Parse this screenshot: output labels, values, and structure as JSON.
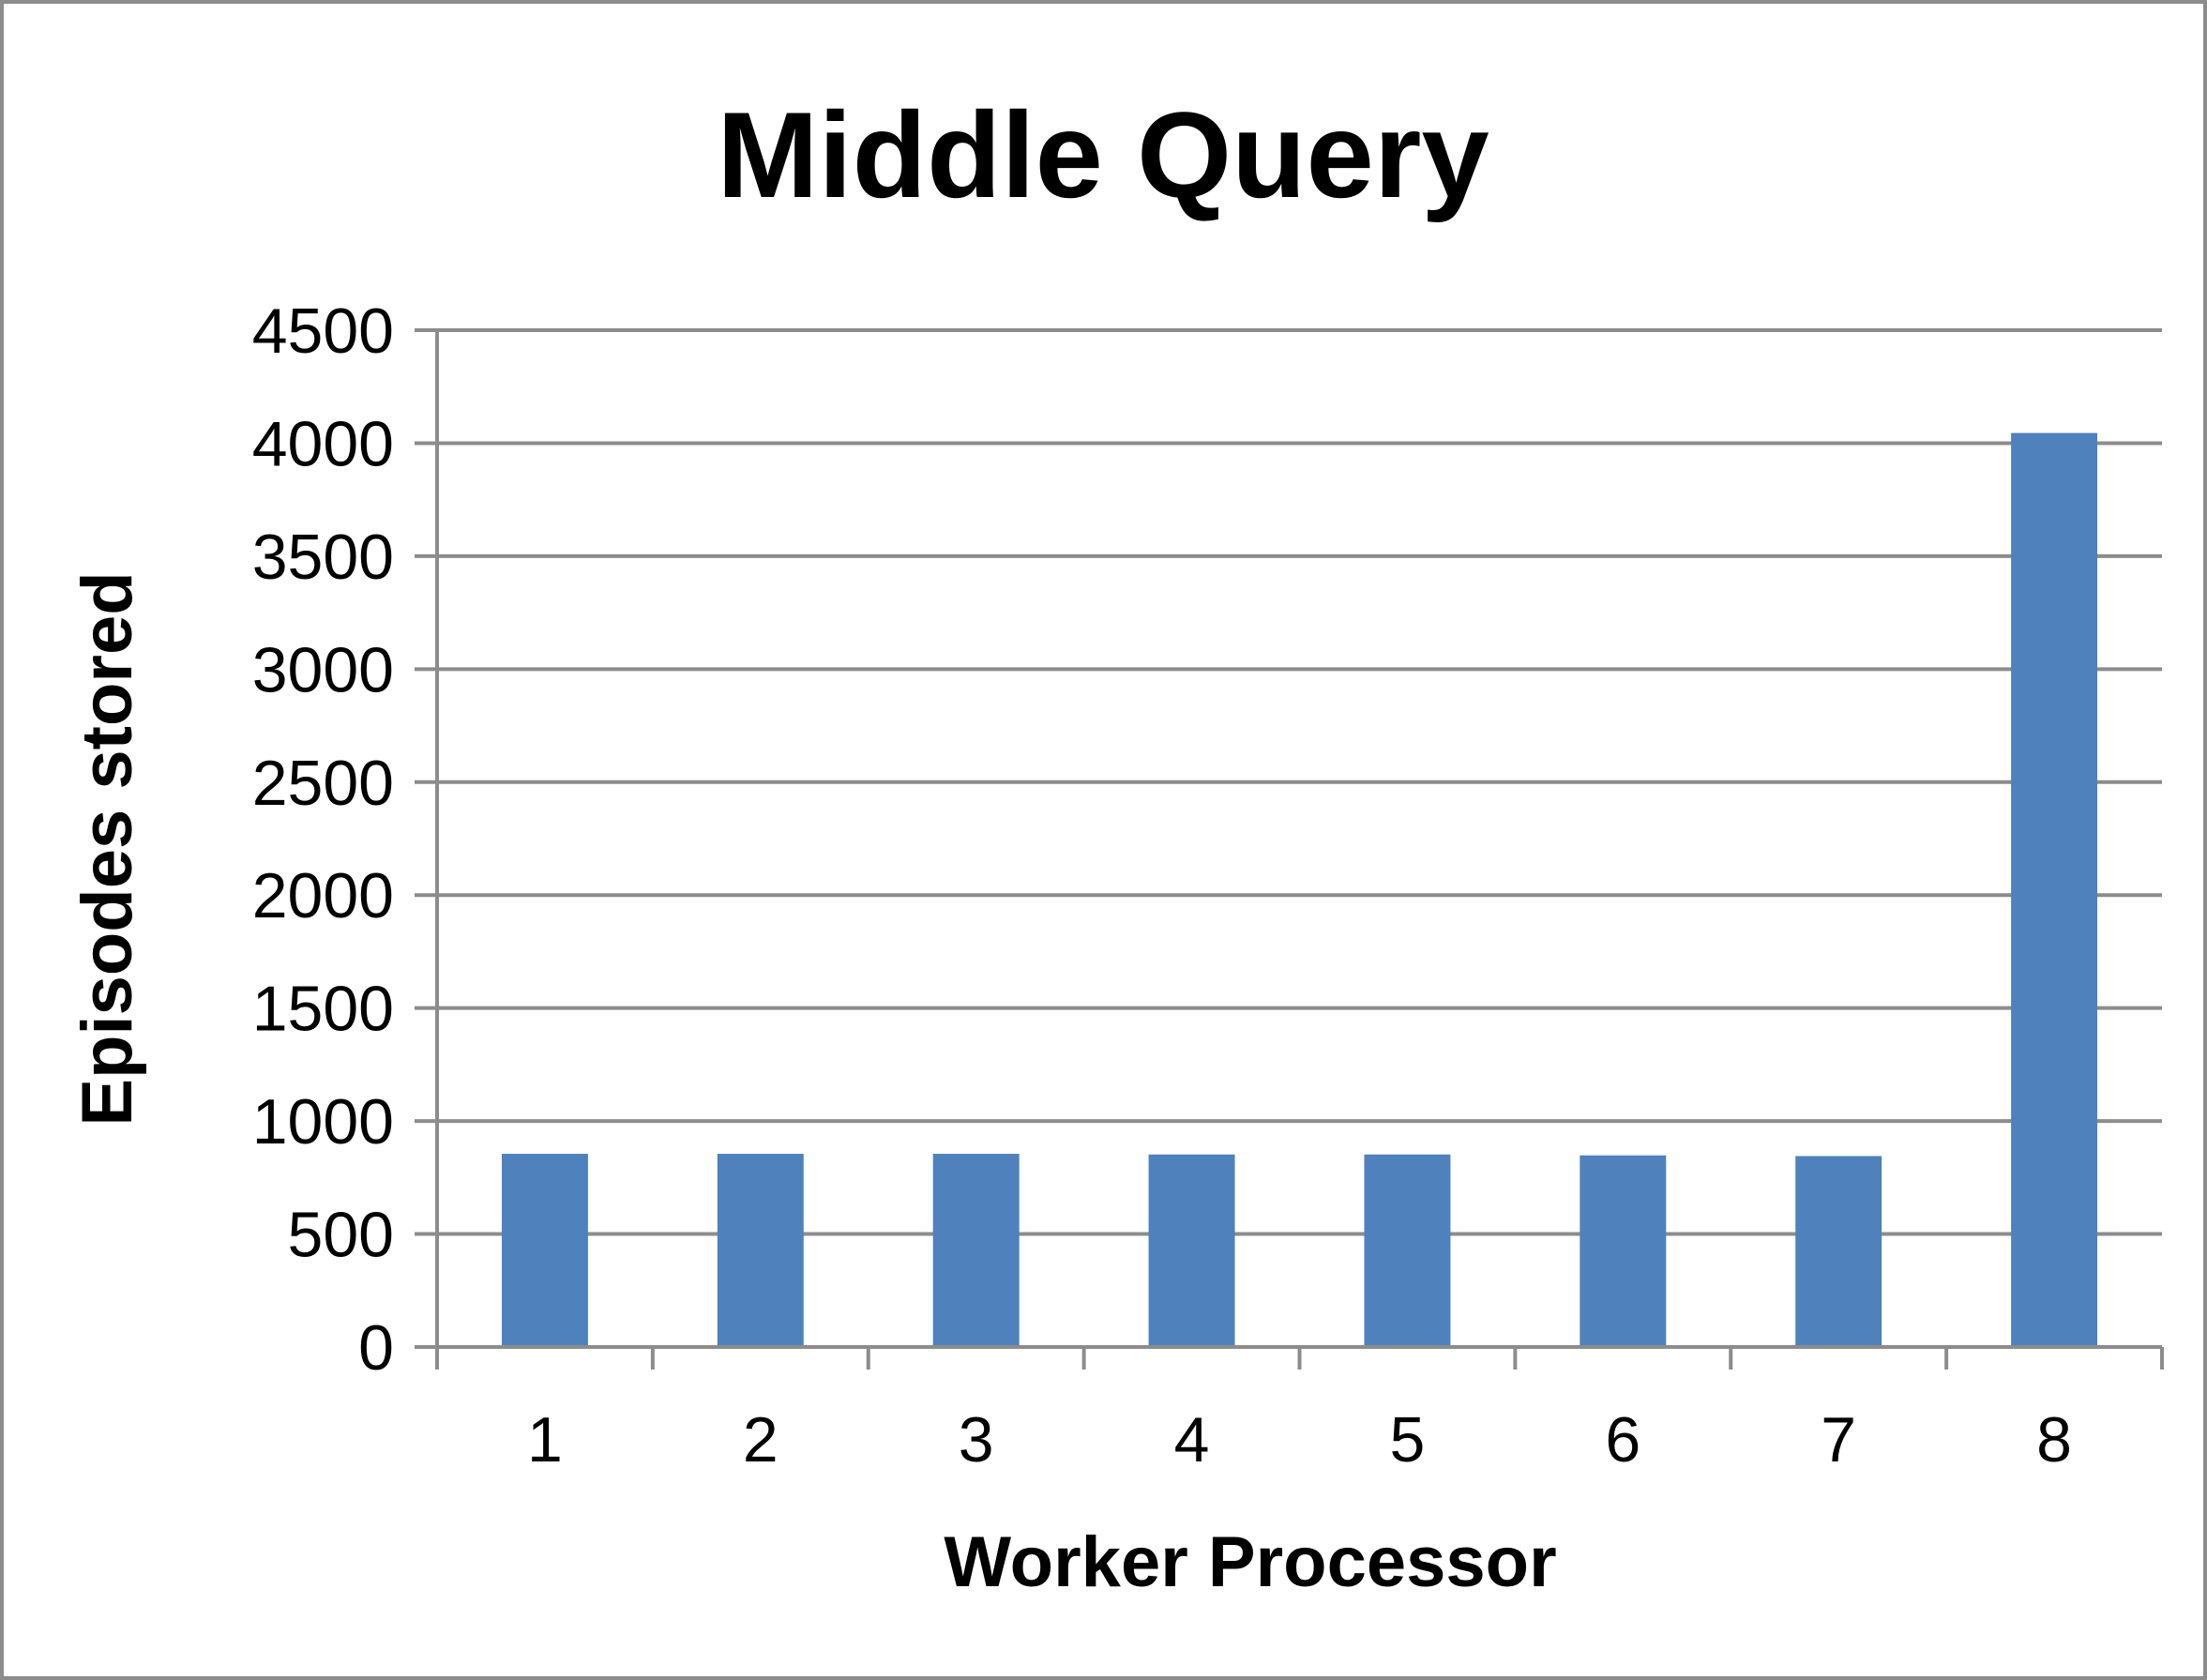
{
  "chart_data": {
    "type": "bar",
    "title": "Middle Query",
    "xlabel": "Worker Processor",
    "ylabel": "Episodes stored",
    "categories": [
      "1",
      "2",
      "3",
      "4",
      "5",
      "6",
      "7",
      "8"
    ],
    "values": [
      855,
      855,
      855,
      852,
      852,
      848,
      845,
      4045
    ],
    "ylim": [
      0,
      4500
    ],
    "yticks": [
      0,
      500,
      1000,
      1500,
      2000,
      2500,
      3000,
      3500,
      4000,
      4500
    ],
    "ytick_labels": [
      "0",
      "500",
      "1000",
      "1500",
      "2000",
      "2500",
      "3000",
      "3500",
      "4000",
      "4500"
    ],
    "grid": true,
    "legend": "none",
    "bar_color": "#4f81bd"
  }
}
